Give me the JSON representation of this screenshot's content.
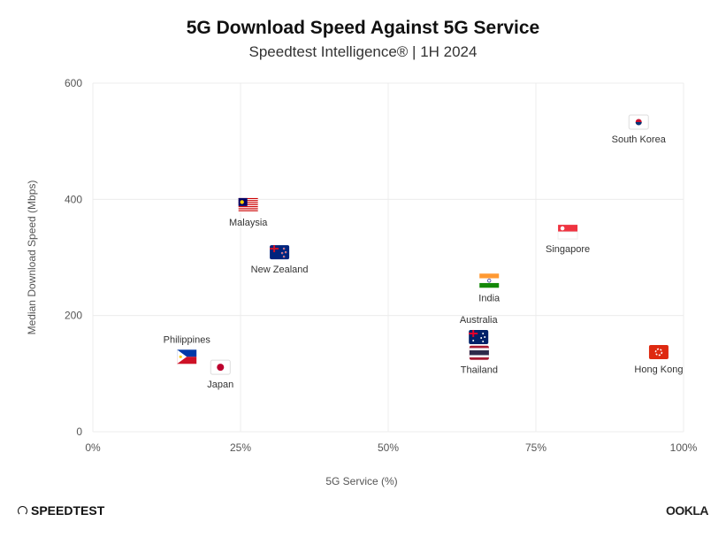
{
  "chart_data": {
    "type": "scatter",
    "title": "5G Download Speed Against 5G Service",
    "subtitle": "Speedtest Intelligence® | 1H 2024",
    "xlabel": "5G Service (%)",
    "ylabel": "Median Download Speed (Mbps)",
    "xlim": [
      0,
      100
    ],
    "ylim": [
      0,
      600
    ],
    "x_ticks": [
      0,
      25,
      50,
      75,
      100
    ],
    "x_tick_labels": [
      "0%",
      "25%",
      "50%",
      "75%",
      "100%"
    ],
    "y_ticks": [
      0,
      200,
      400,
      600
    ],
    "y_tick_labels": [
      "0",
      "200",
      "400",
      "600"
    ],
    "grid": true,
    "marker": "country-flag",
    "points": [
      {
        "label": "South Korea",
        "x": 92.4,
        "y": 533,
        "label_pos": "below"
      },
      {
        "label": "Malaysia",
        "x": 26.3,
        "y": 390,
        "label_pos": "below"
      },
      {
        "label": "New Zealand",
        "x": 31.6,
        "y": 309,
        "label_pos": "below"
      },
      {
        "label": "Singapore",
        "x": 80.4,
        "y": 344,
        "label_pos": "below"
      },
      {
        "label": "India",
        "x": 67.1,
        "y": 260,
        "label_pos": "below"
      },
      {
        "label": "Australia",
        "x": 65.3,
        "y": 163,
        "label_pos": "above"
      },
      {
        "label": "Thailand",
        "x": 65.4,
        "y": 136,
        "label_pos": "below"
      },
      {
        "label": "Philippines",
        "x": 15.9,
        "y": 129,
        "label_pos": "above"
      },
      {
        "label": "Japan",
        "x": 21.6,
        "y": 111,
        "label_pos": "below"
      },
      {
        "label": "Hong Kong",
        "x": 95.8,
        "y": 137,
        "label_pos": "below"
      }
    ]
  },
  "footer": {
    "left_logo": "SPEEDTEST",
    "right_logo": "OOKLA"
  }
}
